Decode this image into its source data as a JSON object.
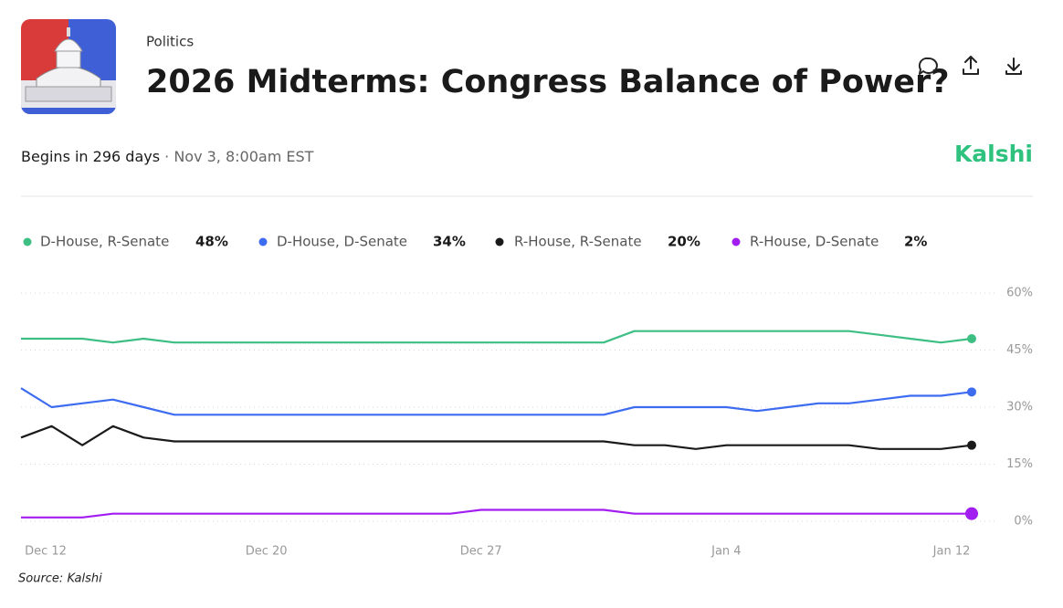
{
  "header": {
    "category": "Politics",
    "title": "2026 Midterms: Congress Balance of Power?",
    "begins": "Begins in 296 days",
    "date": "· Nov 3, 8:00am EST",
    "brand": "Kalshi"
  },
  "chart_data": {
    "type": "line",
    "categories": [
      "Dec 12",
      null,
      null,
      null,
      null,
      null,
      null,
      null,
      "Dec 20",
      null,
      null,
      null,
      null,
      null,
      null,
      "Dec 27",
      null,
      null,
      null,
      null,
      null,
      null,
      null,
      "Jan 4",
      null,
      null,
      null,
      null,
      null,
      null,
      null,
      "Jan 12"
    ],
    "series": [
      {
        "name": "D-House, R-Senate",
        "color": "#3dbf84",
        "value_label": "48%",
        "values": [
          48,
          48,
          48,
          47,
          48,
          47,
          47,
          47,
          47,
          47,
          47,
          47,
          47,
          47,
          47,
          47,
          47,
          47,
          47,
          47,
          50,
          50,
          50,
          50,
          50,
          50,
          50,
          50,
          49,
          48,
          47,
          48
        ]
      },
      {
        "name": "D-House, D-Senate",
        "color": "#3d6cf0",
        "value_label": "34%",
        "values": [
          35,
          30,
          31,
          32,
          30,
          28,
          28,
          28,
          28,
          28,
          28,
          28,
          28,
          28,
          28,
          28,
          28,
          28,
          28,
          28,
          30,
          30,
          30,
          30,
          29,
          30,
          31,
          31,
          32,
          33,
          33,
          34
        ]
      },
      {
        "name": "R-House, R-Senate",
        "color": "#1a1a1a",
        "value_label": "20%",
        "values": [
          22,
          25,
          20,
          25,
          22,
          21,
          21,
          21,
          21,
          21,
          21,
          21,
          21,
          21,
          21,
          21,
          21,
          21,
          21,
          21,
          20,
          20,
          19,
          20,
          20,
          20,
          20,
          20,
          19,
          19,
          19,
          20
        ]
      },
      {
        "name": "R-House, D-Senate",
        "color": "#a21ef0",
        "value_label": "2%",
        "values": [
          1,
          1,
          1,
          2,
          2,
          2,
          2,
          2,
          2,
          2,
          2,
          2,
          2,
          2,
          2,
          3,
          3,
          3,
          3,
          3,
          2,
          2,
          2,
          2,
          2,
          2,
          2,
          2,
          2,
          2,
          2,
          2
        ]
      }
    ],
    "ylim": [
      0,
      60
    ],
    "yticks": [
      {
        "value": 0,
        "label": "0%"
      },
      {
        "value": 15,
        "label": "15%"
      },
      {
        "value": 30,
        "label": "30%"
      },
      {
        "value": 45,
        "label": "45%"
      },
      {
        "value": 60,
        "label": "60%"
      }
    ],
    "grid": true,
    "source": "Source: Kalshi"
  }
}
